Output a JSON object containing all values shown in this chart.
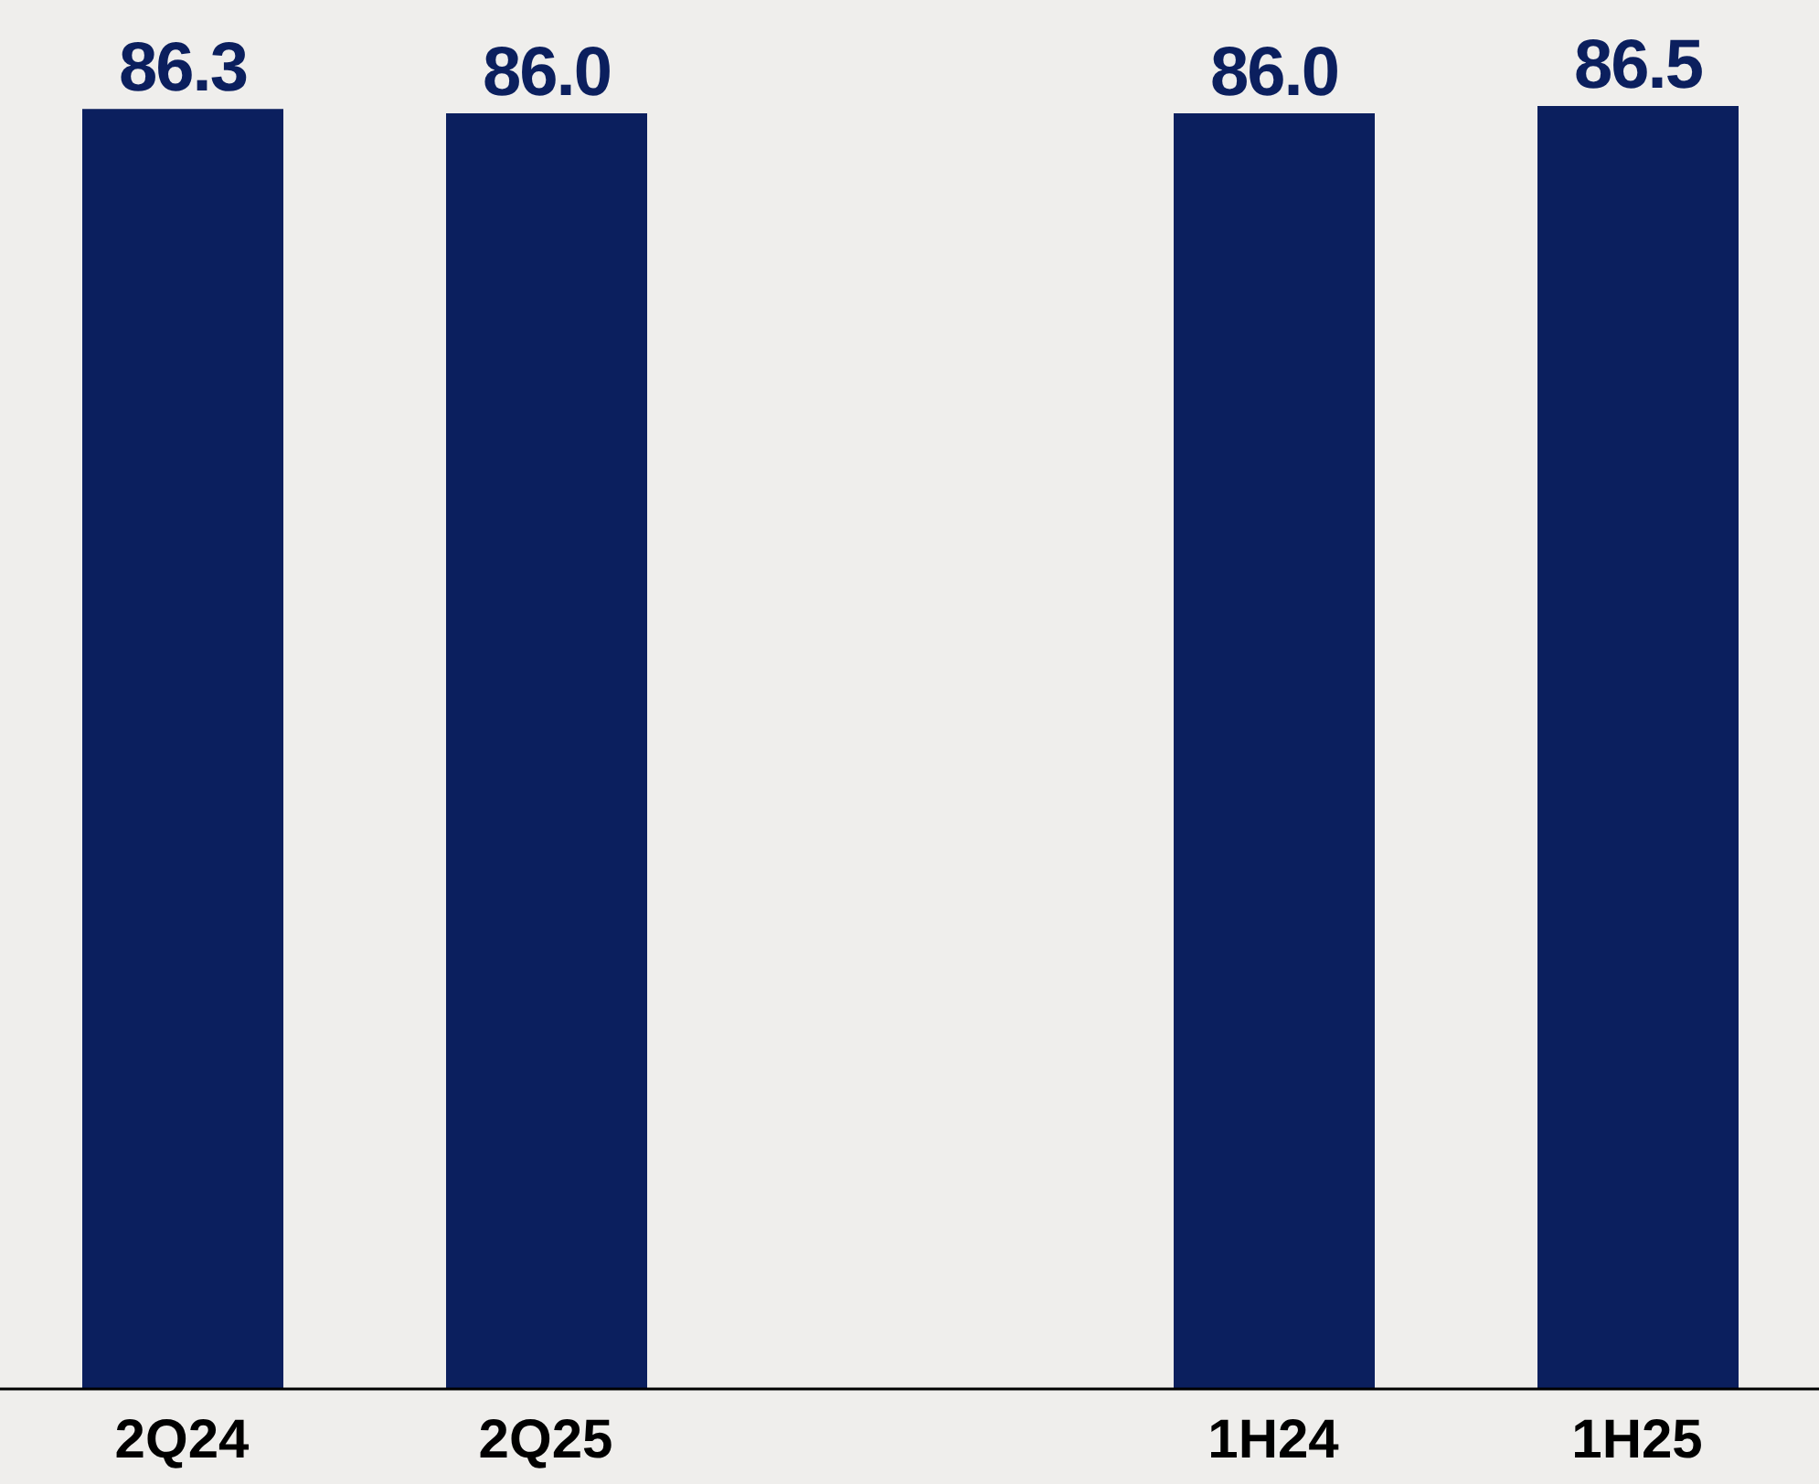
{
  "chart_data": {
    "type": "bar",
    "categories": [
      "2Q24",
      "2Q25",
      null,
      "1H24",
      "1H25"
    ],
    "values": [
      86.3,
      86.0,
      null,
      86.0,
      86.5
    ],
    "value_labels": [
      "86.3",
      "86.0",
      null,
      "86.0",
      "86.5"
    ],
    "color": "#0b1f5e",
    "tick_labels": "x",
    "grid": false,
    "legend": false
  }
}
